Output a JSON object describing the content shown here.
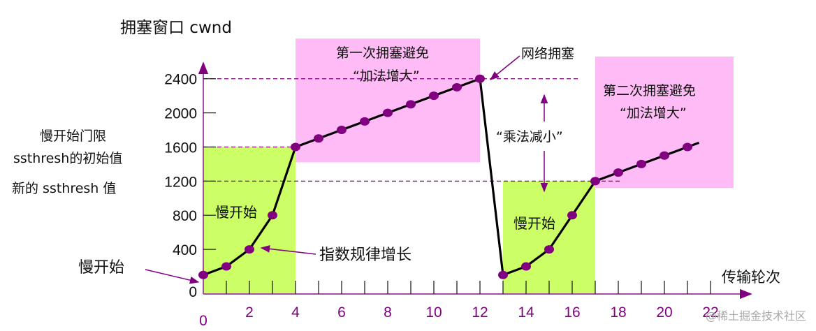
{
  "chart_data": {
    "type": "line",
    "title": "拥塞窗口 cwnd",
    "ylabel": "拥塞窗口 cwnd",
    "xlabel": "传输轮次",
    "x_ticks": [
      0,
      2,
      4,
      6,
      8,
      10,
      12,
      14,
      16,
      18,
      20,
      22
    ],
    "y_ticks": [
      0,
      400,
      800,
      1200,
      1600,
      2000,
      2400
    ],
    "xlim": [
      0,
      23
    ],
    "ylim": [
      0,
      2700
    ],
    "grid": false,
    "series": [
      {
        "name": "cwnd",
        "x": [
          0,
          1,
          2,
          3,
          4,
          5,
          6,
          7,
          8,
          9,
          10,
          11,
          12,
          13,
          14,
          15,
          16,
          17,
          18,
          19,
          20,
          21
        ],
        "values": [
          100,
          200,
          400,
          800,
          1600,
          1700,
          1800,
          1900,
          2000,
          2100,
          2200,
          2300,
          2400,
          100,
          200,
          400,
          800,
          1200,
          1300,
          1400,
          1500,
          1600
        ]
      }
    ],
    "line_end": {
      "x": 21.5,
      "y": 1650
    },
    "regions": [
      {
        "name": "slow-start-1",
        "label": "慢开始",
        "x": [
          0,
          4
        ],
        "y": [
          0,
          1600
        ],
        "color": "#ccff66"
      },
      {
        "name": "congestion-avoidance-1",
        "label": "第一次拥塞避免 “加法增大”",
        "x": [
          4,
          12
        ],
        "y": [
          1420,
          2870
        ],
        "color": "#ffbbf5"
      },
      {
        "name": "slow-start-2",
        "label": "慢开始",
        "x": [
          13,
          17
        ],
        "y": [
          0,
          1200
        ],
        "color": "#ccff66"
      },
      {
        "name": "congestion-avoidance-2",
        "label": "第二次拥塞避免 “加法增大”",
        "x": [
          17,
          23
        ],
        "y": [
          1120,
          2660
        ],
        "color": "#ffbbf5"
      }
    ],
    "reference_lines": [
      {
        "y": 2400,
        "style": "dashed"
      },
      {
        "y": 1600,
        "style": "dashed"
      },
      {
        "y": 1200,
        "style": "dashed"
      }
    ],
    "annotations": [
      {
        "text": "慢开始门限",
        "near": "y=1600 (left)"
      },
      {
        "text": "ssthresh的初始值",
        "near": "y=1600 (left)"
      },
      {
        "text": "新的 ssthresh 值",
        "near": "y=1200 (left)"
      },
      {
        "text": "慢开始",
        "arrow_to": {
          "x": 0,
          "y": 100
        }
      },
      {
        "text": "指数规律增长",
        "arrow_to": {
          "x": 2.8,
          "y": 550
        }
      },
      {
        "text": "网络拥塞",
        "arrow_to": {
          "x": 12,
          "y": 2400
        }
      },
      {
        "text": "“乘法减小”",
        "between": [
          2400,
          1200
        ],
        "x": 15
      }
    ],
    "colors": {
      "line": "#000000",
      "marker": "#800080",
      "axis": "#a050a0",
      "tick_label_x": "#800080",
      "slow_start_fill": "#ccff66",
      "avoid_fill": "#ffbbf5",
      "dashed": "#800080"
    }
  },
  "labels": {
    "y_title": "拥塞窗口 cwnd",
    "x_title": "传输轮次",
    "ssthresh_initial_line1": "慢开始门限",
    "ssthresh_initial_line2": "ssthresh的初始值",
    "ssthresh_new": "新的 ssthresh 值",
    "slow_start_left": "慢开始",
    "slow_start_box1": "慢开始",
    "slow_start_box2": "慢开始",
    "exp_growth": "指数规律增长",
    "network_congestion": "网络拥塞",
    "ca1_line1": "第一次拥塞避免",
    "ca1_line2": "“加法增大”",
    "ca2_line1": "第二次拥塞避免",
    "ca2_line2": "“加法增大”",
    "mult_decrease": "“乘法减小”",
    "watermark": "@稀土掘金技术社区"
  }
}
